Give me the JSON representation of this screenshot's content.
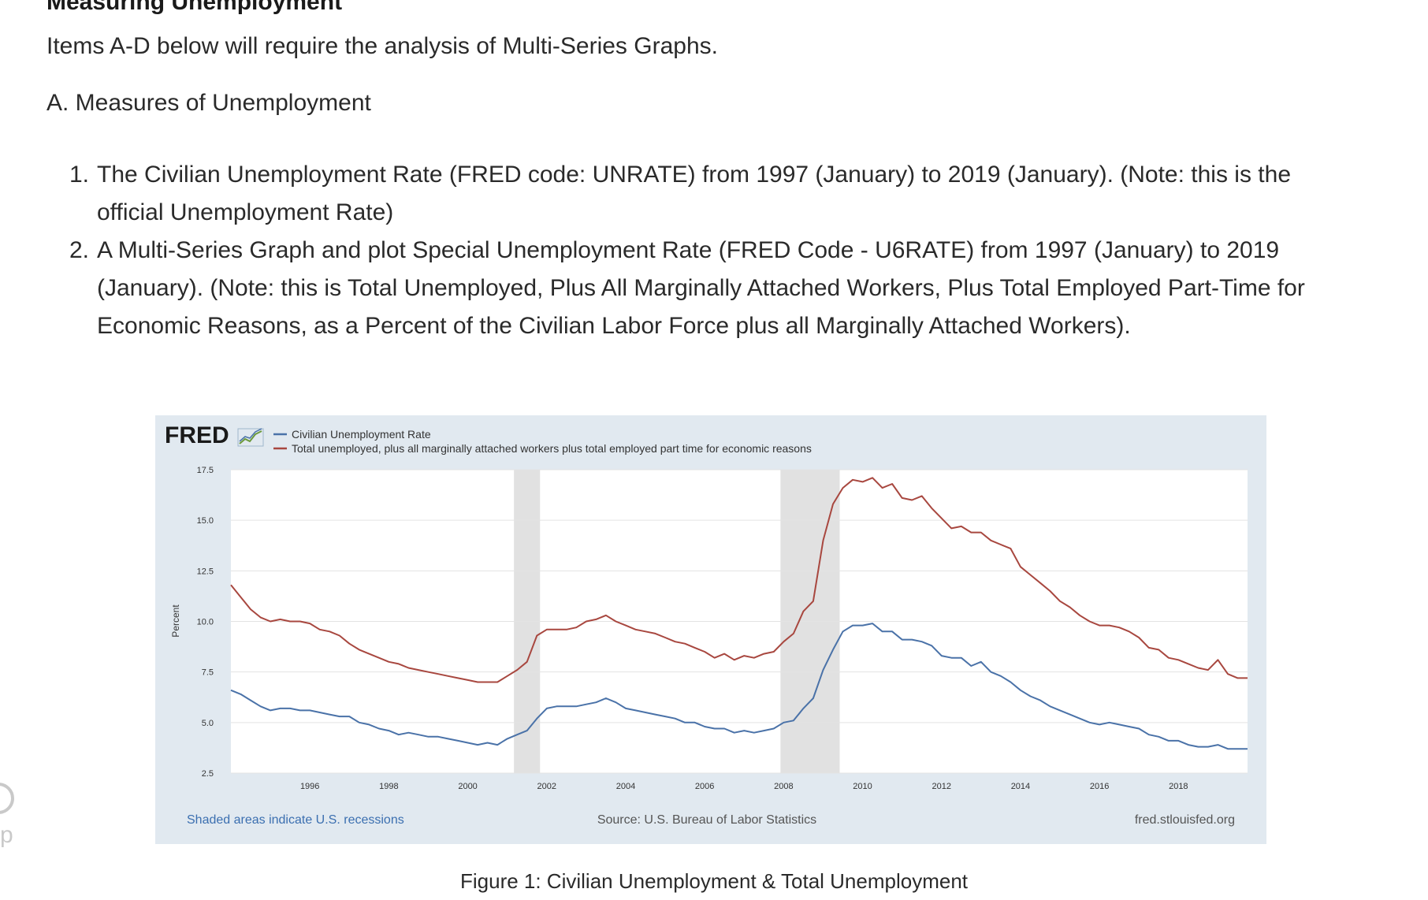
{
  "page": {
    "section_title": "Measuring Unemployment",
    "intro": "Items A-D below will require the analysis of Multi-Series Graphs.",
    "subsection": "A. Measures of Unemployment",
    "items": [
      {
        "number": "1.",
        "text": "The Civilian Unemployment Rate (FRED code: UNRATE) from 1997 (January) to 2019 (January). (Note: this is the official Unemployment Rate)"
      },
      {
        "number": "2.",
        "text": "A Multi-Series Graph and plot Special Unemployment Rate (FRED Code - U6RATE) from 1997 (January) to 2019 (January). (Note: this is Total Unemployed, Plus All Marginally Attached Workers, Plus Total Employed Part-Time for Economic Reasons, as a Percent of the Civilian Labor Force plus all Marginally Attached Workers)."
      }
    ],
    "figure_caption": "Figure 1: Civilian Unemployment & Total Unemployment",
    "side_letter": "p"
  },
  "fred": {
    "logo": "FRED",
    "footer_left": "Shaded areas indicate U.S. recessions",
    "footer_center": "Source: U.S. Bureau of Labor Statistics",
    "footer_right": "fred.stlouisfed.org",
    "link_color": "#3b6fb0"
  },
  "chart_data": {
    "type": "line",
    "title": "",
    "xlabel": "",
    "ylabel": "Percent",
    "xlim": [
      1994,
      2019.75
    ],
    "ylim": [
      2.5,
      17.5
    ],
    "yticks": [
      "17.5",
      "15.0",
      "12.5",
      "10.0",
      "7.5",
      "5.0",
      "2.5"
    ],
    "xticks": [
      "1996",
      "1998",
      "2000",
      "2002",
      "2004",
      "2006",
      "2008",
      "2010",
      "2012",
      "2014",
      "2016",
      "2018"
    ],
    "grid": true,
    "legend_position": "top",
    "recessions": [
      [
        2001.17,
        2001.83
      ],
      [
        2007.92,
        2009.42
      ]
    ],
    "recession_color": "#e1e1e1",
    "series": [
      {
        "name": "Civilian Unemployment Rate",
        "color": "#4a72a8",
        "points": [
          [
            1994,
            6.6
          ],
          [
            1994.25,
            6.4
          ],
          [
            1994.5,
            6.1
          ],
          [
            1994.75,
            5.8
          ],
          [
            1995,
            5.6
          ],
          [
            1995.25,
            5.7
          ],
          [
            1995.5,
            5.7
          ],
          [
            1995.75,
            5.6
          ],
          [
            1996,
            5.6
          ],
          [
            1996.25,
            5.5
          ],
          [
            1996.5,
            5.4
          ],
          [
            1996.75,
            5.3
          ],
          [
            1997,
            5.3
          ],
          [
            1997.25,
            5.0
          ],
          [
            1997.5,
            4.9
          ],
          [
            1997.75,
            4.7
          ],
          [
            1998,
            4.6
          ],
          [
            1998.25,
            4.4
          ],
          [
            1998.5,
            4.5
          ],
          [
            1998.75,
            4.4
          ],
          [
            1999,
            4.3
          ],
          [
            1999.25,
            4.3
          ],
          [
            1999.5,
            4.2
          ],
          [
            1999.75,
            4.1
          ],
          [
            2000,
            4.0
          ],
          [
            2000.25,
            3.9
          ],
          [
            2000.5,
            4.0
          ],
          [
            2000.75,
            3.9
          ],
          [
            2001,
            4.2
          ],
          [
            2001.25,
            4.4
          ],
          [
            2001.5,
            4.6
          ],
          [
            2001.75,
            5.2
          ],
          [
            2002,
            5.7
          ],
          [
            2002.25,
            5.8
          ],
          [
            2002.5,
            5.8
          ],
          [
            2002.75,
            5.8
          ],
          [
            2003,
            5.9
          ],
          [
            2003.25,
            6.0
          ],
          [
            2003.5,
            6.2
          ],
          [
            2003.75,
            6.0
          ],
          [
            2004,
            5.7
          ],
          [
            2004.25,
            5.6
          ],
          [
            2004.5,
            5.5
          ],
          [
            2004.75,
            5.4
          ],
          [
            2005,
            5.3
          ],
          [
            2005.25,
            5.2
          ],
          [
            2005.5,
            5.0
          ],
          [
            2005.75,
            5.0
          ],
          [
            2006,
            4.8
          ],
          [
            2006.25,
            4.7
          ],
          [
            2006.5,
            4.7
          ],
          [
            2006.75,
            4.5
          ],
          [
            2007,
            4.6
          ],
          [
            2007.25,
            4.5
          ],
          [
            2007.5,
            4.6
          ],
          [
            2007.75,
            4.7
          ],
          [
            2008,
            5.0
          ],
          [
            2008.25,
            5.1
          ],
          [
            2008.5,
            5.7
          ],
          [
            2008.75,
            6.2
          ],
          [
            2009,
            7.6
          ],
          [
            2009.25,
            8.6
          ],
          [
            2009.5,
            9.5
          ],
          [
            2009.75,
            9.8
          ],
          [
            2010,
            9.8
          ],
          [
            2010.25,
            9.9
          ],
          [
            2010.5,
            9.5
          ],
          [
            2010.75,
            9.5
          ],
          [
            2011,
            9.1
          ],
          [
            2011.25,
            9.1
          ],
          [
            2011.5,
            9.0
          ],
          [
            2011.75,
            8.8
          ],
          [
            2012,
            8.3
          ],
          [
            2012.25,
            8.2
          ],
          [
            2012.5,
            8.2
          ],
          [
            2012.75,
            7.8
          ],
          [
            2013,
            8.0
          ],
          [
            2013.25,
            7.5
          ],
          [
            2013.5,
            7.3
          ],
          [
            2013.75,
            7.0
          ],
          [
            2014,
            6.6
          ],
          [
            2014.25,
            6.3
          ],
          [
            2014.5,
            6.1
          ],
          [
            2014.75,
            5.8
          ],
          [
            2015,
            5.6
          ],
          [
            2015.25,
            5.4
          ],
          [
            2015.5,
            5.2
          ],
          [
            2015.75,
            5.0
          ],
          [
            2016,
            4.9
          ],
          [
            2016.25,
            5.0
          ],
          [
            2016.5,
            4.9
          ],
          [
            2016.75,
            4.8
          ],
          [
            2017,
            4.7
          ],
          [
            2017.25,
            4.4
          ],
          [
            2017.5,
            4.3
          ],
          [
            2017.75,
            4.1
          ],
          [
            2018,
            4.1
          ],
          [
            2018.25,
            3.9
          ],
          [
            2018.5,
            3.8
          ],
          [
            2018.75,
            3.8
          ],
          [
            2019,
            3.9
          ],
          [
            2019.25,
            3.7
          ],
          [
            2019.5,
            3.7
          ],
          [
            2019.75,
            3.7
          ]
        ]
      },
      {
        "name": "Total unemployed, plus all marginally attached workers plus total employed part time for economic reasons",
        "color": "#a8473f",
        "points": [
          [
            1994,
            11.8
          ],
          [
            1994.25,
            11.2
          ],
          [
            1994.5,
            10.6
          ],
          [
            1994.75,
            10.2
          ],
          [
            1995,
            10.0
          ],
          [
            1995.25,
            10.1
          ],
          [
            1995.5,
            10.0
          ],
          [
            1995.75,
            10.0
          ],
          [
            1996,
            9.9
          ],
          [
            1996.25,
            9.6
          ],
          [
            1996.5,
            9.5
          ],
          [
            1996.75,
            9.3
          ],
          [
            1997,
            8.9
          ],
          [
            1997.25,
            8.6
          ],
          [
            1997.5,
            8.4
          ],
          [
            1997.75,
            8.2
          ],
          [
            1998,
            8.0
          ],
          [
            1998.25,
            7.9
          ],
          [
            1998.5,
            7.7
          ],
          [
            1998.75,
            7.6
          ],
          [
            1999,
            7.5
          ],
          [
            1999.25,
            7.4
          ],
          [
            1999.5,
            7.3
          ],
          [
            1999.75,
            7.2
          ],
          [
            2000,
            7.1
          ],
          [
            2000.25,
            7.0
          ],
          [
            2000.5,
            7.0
          ],
          [
            2000.75,
            7.0
          ],
          [
            2001,
            7.3
          ],
          [
            2001.25,
            7.6
          ],
          [
            2001.5,
            8.0
          ],
          [
            2001.75,
            9.3
          ],
          [
            2002,
            9.6
          ],
          [
            2002.25,
            9.6
          ],
          [
            2002.5,
            9.6
          ],
          [
            2002.75,
            9.7
          ],
          [
            2003,
            10.0
          ],
          [
            2003.25,
            10.1
          ],
          [
            2003.5,
            10.3
          ],
          [
            2003.75,
            10.0
          ],
          [
            2004,
            9.8
          ],
          [
            2004.25,
            9.6
          ],
          [
            2004.5,
            9.5
          ],
          [
            2004.75,
            9.4
          ],
          [
            2005,
            9.2
          ],
          [
            2005.25,
            9.0
          ],
          [
            2005.5,
            8.9
          ],
          [
            2005.75,
            8.7
          ],
          [
            2006,
            8.5
          ],
          [
            2006.25,
            8.2
          ],
          [
            2006.5,
            8.4
          ],
          [
            2006.75,
            8.1
          ],
          [
            2007,
            8.3
          ],
          [
            2007.25,
            8.2
          ],
          [
            2007.5,
            8.4
          ],
          [
            2007.75,
            8.5
          ],
          [
            2008,
            9.0
          ],
          [
            2008.25,
            9.4
          ],
          [
            2008.5,
            10.5
          ],
          [
            2008.75,
            11.0
          ],
          [
            2009,
            14.0
          ],
          [
            2009.25,
            15.8
          ],
          [
            2009.5,
            16.6
          ],
          [
            2009.75,
            17.0
          ],
          [
            2010,
            16.9
          ],
          [
            2010.25,
            17.1
          ],
          [
            2010.5,
            16.6
          ],
          [
            2010.75,
            16.8
          ],
          [
            2011,
            16.1
          ],
          [
            2011.25,
            16.0
          ],
          [
            2011.5,
            16.2
          ],
          [
            2011.75,
            15.6
          ],
          [
            2012,
            15.1
          ],
          [
            2012.25,
            14.6
          ],
          [
            2012.5,
            14.7
          ],
          [
            2012.75,
            14.4
          ],
          [
            2013,
            14.4
          ],
          [
            2013.25,
            14.0
          ],
          [
            2013.5,
            13.8
          ],
          [
            2013.75,
            13.6
          ],
          [
            2014,
            12.7
          ],
          [
            2014.25,
            12.3
          ],
          [
            2014.5,
            11.9
          ],
          [
            2014.75,
            11.5
          ],
          [
            2015,
            11.0
          ],
          [
            2015.25,
            10.7
          ],
          [
            2015.5,
            10.3
          ],
          [
            2015.75,
            10.0
          ],
          [
            2016,
            9.8
          ],
          [
            2016.25,
            9.8
          ],
          [
            2016.5,
            9.7
          ],
          [
            2016.75,
            9.5
          ],
          [
            2017,
            9.2
          ],
          [
            2017.25,
            8.7
          ],
          [
            2017.5,
            8.6
          ],
          [
            2017.75,
            8.2
          ],
          [
            2018,
            8.1
          ],
          [
            2018.25,
            7.9
          ],
          [
            2018.5,
            7.7
          ],
          [
            2018.75,
            7.6
          ],
          [
            2019,
            8.1
          ],
          [
            2019.25,
            7.4
          ],
          [
            2019.5,
            7.2
          ],
          [
            2019.75,
            7.2
          ]
        ]
      }
    ]
  }
}
